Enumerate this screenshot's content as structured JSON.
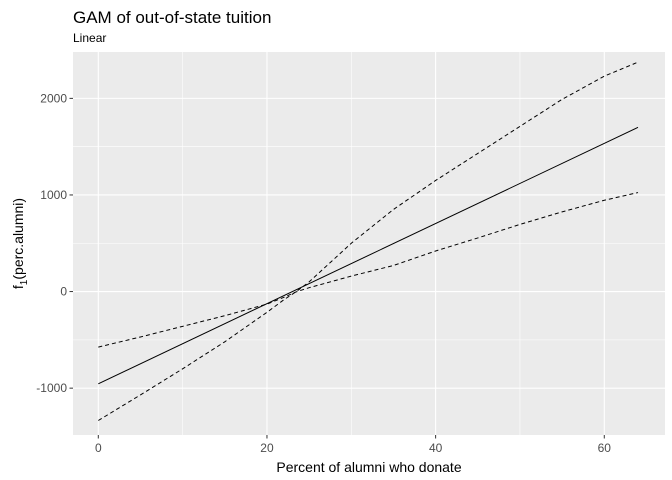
{
  "chart_data": {
    "type": "line",
    "title": "GAM of out-of-state tuition",
    "subtitle": "Linear",
    "xlabel": "Percent of alumni who donate",
    "ylabel_main": "f",
    "ylabel_sub": "1",
    "ylabel_rest": "(perc.alumni)",
    "xlim": [
      -3,
      67.2
    ],
    "ylim": [
      -1485,
      2480
    ],
    "x_ticks": [
      0,
      20,
      40,
      60
    ],
    "x_minor_ticks": [
      10,
      30,
      50
    ],
    "y_ticks": [
      -1000,
      0,
      1000,
      2000
    ],
    "y_minor_ticks": [
      -500,
      500,
      1500
    ],
    "grid": true,
    "background": "#ebebeb",
    "grid_color": "#ffffff",
    "series": [
      {
        "role": "fit",
        "style": "solid",
        "x": [
          0,
          64
        ],
        "y": [
          -955,
          1700
        ]
      },
      {
        "role": "upper",
        "style": "dashed",
        "x": [
          0,
          5,
          10,
          15,
          20,
          22,
          23.4,
          25,
          30,
          35,
          40,
          45,
          50,
          55,
          60,
          64
        ],
        "y": [
          -575,
          -470,
          -360,
          -250,
          -130,
          -60,
          -5,
          40,
          160,
          270,
          420,
          555,
          695,
          825,
          945,
          1025
        ]
      },
      {
        "role": "lower",
        "style": "dashed",
        "x": [
          0,
          5,
          10,
          15,
          20,
          22,
          23.4,
          25,
          30,
          35,
          40,
          45,
          50,
          55,
          60,
          64
        ],
        "y": [
          -1335,
          -1070,
          -800,
          -520,
          -215,
          -85,
          -5,
          100,
          500,
          850,
          1150,
          1430,
          1710,
          1990,
          2230,
          2375
        ]
      }
    ]
  }
}
